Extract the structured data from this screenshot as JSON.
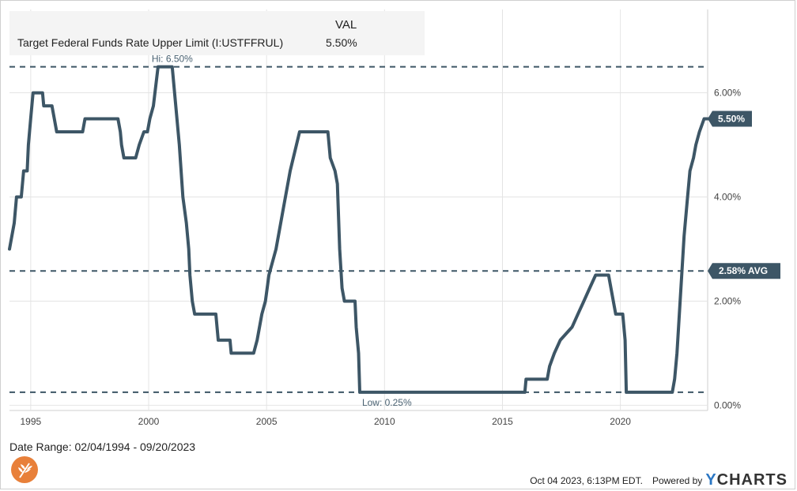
{
  "legend": {
    "header": "VAL",
    "series_name": "Target Federal Funds Rate Upper Limit (I:USTFFRUL)",
    "series_value": "5.50%"
  },
  "date_range": "Date Range: 02/04/1994 - 09/20/2023",
  "footer": {
    "timestamp": "Oct 04 2023, 6:13PM EDT.",
    "powered_by": "Powered by",
    "brand_y": "Y",
    "brand_rest": "CHARTS"
  },
  "colors": {
    "series": "#3d5666",
    "reference": "#3d5666",
    "grid": "#e4e4e4"
  },
  "chart_data": {
    "type": "line",
    "title": "",
    "xlabel": "",
    "ylabel": "",
    "x_range": [
      1994.1,
      2023.7
    ],
    "y_range": [
      -0.1,
      7.6
    ],
    "x_ticks": [
      {
        "value": 1995,
        "label": "1995"
      },
      {
        "value": 2000,
        "label": "2000"
      },
      {
        "value": 2005,
        "label": "2005"
      },
      {
        "value": 2010,
        "label": "2010"
      },
      {
        "value": 2015,
        "label": "2015"
      },
      {
        "value": 2020,
        "label": "2020"
      }
    ],
    "y_ticks": [
      {
        "value": 0,
        "label": "0.00%"
      },
      {
        "value": 2,
        "label": "2.00%"
      },
      {
        "value": 4,
        "label": "4.00%"
      },
      {
        "value": 6,
        "label": "6.00%"
      }
    ],
    "grid": true,
    "series": [
      {
        "name": "Target Federal Funds Rate Upper Limit (I:USTFFRUL)",
        "points": [
          [
            1994.1,
            3.0
          ],
          [
            1994.3,
            3.5
          ],
          [
            1994.4,
            4.0
          ],
          [
            1994.6,
            4.0
          ],
          [
            1994.7,
            4.5
          ],
          [
            1994.85,
            4.5
          ],
          [
            1994.9,
            5.0
          ],
          [
            1995.0,
            5.5
          ],
          [
            1995.1,
            6.0
          ],
          [
            1995.5,
            6.0
          ],
          [
            1995.55,
            5.75
          ],
          [
            1995.9,
            5.75
          ],
          [
            1996.0,
            5.5
          ],
          [
            1996.1,
            5.25
          ],
          [
            1997.2,
            5.25
          ],
          [
            1997.3,
            5.5
          ],
          [
            1998.7,
            5.5
          ],
          [
            1998.8,
            5.25
          ],
          [
            1998.85,
            5.0
          ],
          [
            1998.95,
            4.75
          ],
          [
            1999.45,
            4.75
          ],
          [
            1999.6,
            5.0
          ],
          [
            1999.8,
            5.25
          ],
          [
            1999.95,
            5.25
          ],
          [
            2000.05,
            5.5
          ],
          [
            2000.2,
            5.75
          ],
          [
            2000.4,
            6.5
          ],
          [
            2001.0,
            6.5
          ],
          [
            2001.1,
            6.0
          ],
          [
            2001.2,
            5.5
          ],
          [
            2001.3,
            5.0
          ],
          [
            2001.45,
            4.0
          ],
          [
            2001.6,
            3.5
          ],
          [
            2001.7,
            3.0
          ],
          [
            2001.75,
            2.5
          ],
          [
            2001.85,
            2.0
          ],
          [
            2001.95,
            1.75
          ],
          [
            2002.85,
            1.75
          ],
          [
            2002.95,
            1.25
          ],
          [
            2003.45,
            1.25
          ],
          [
            2003.5,
            1.0
          ],
          [
            2004.45,
            1.0
          ],
          [
            2004.6,
            1.25
          ],
          [
            2004.8,
            1.75
          ],
          [
            2004.95,
            2.0
          ],
          [
            2005.1,
            2.5
          ],
          [
            2005.4,
            3.0
          ],
          [
            2005.7,
            3.75
          ],
          [
            2006.0,
            4.5
          ],
          [
            2006.4,
            5.25
          ],
          [
            2007.6,
            5.25
          ],
          [
            2007.7,
            4.75
          ],
          [
            2007.9,
            4.5
          ],
          [
            2008.0,
            4.25
          ],
          [
            2008.1,
            3.0
          ],
          [
            2008.2,
            2.25
          ],
          [
            2008.3,
            2.0
          ],
          [
            2008.75,
            2.0
          ],
          [
            2008.8,
            1.5
          ],
          [
            2008.9,
            1.0
          ],
          [
            2008.95,
            0.25
          ],
          [
            2015.95,
            0.25
          ],
          [
            2016.0,
            0.5
          ],
          [
            2016.9,
            0.5
          ],
          [
            2017.0,
            0.75
          ],
          [
            2017.2,
            1.0
          ],
          [
            2017.45,
            1.25
          ],
          [
            2017.95,
            1.5
          ],
          [
            2018.2,
            1.75
          ],
          [
            2018.45,
            2.0
          ],
          [
            2018.7,
            2.25
          ],
          [
            2018.95,
            2.5
          ],
          [
            2019.5,
            2.5
          ],
          [
            2019.6,
            2.25
          ],
          [
            2019.7,
            2.0
          ],
          [
            2019.8,
            1.75
          ],
          [
            2020.1,
            1.75
          ],
          [
            2020.2,
            1.25
          ],
          [
            2020.25,
            0.25
          ],
          [
            2022.2,
            0.25
          ],
          [
            2022.3,
            0.5
          ],
          [
            2022.4,
            1.0
          ],
          [
            2022.5,
            1.75
          ],
          [
            2022.6,
            2.5
          ],
          [
            2022.7,
            3.25
          ],
          [
            2022.85,
            4.0
          ],
          [
            2022.95,
            4.5
          ],
          [
            2023.1,
            4.75
          ],
          [
            2023.2,
            5.0
          ],
          [
            2023.35,
            5.25
          ],
          [
            2023.55,
            5.5
          ],
          [
            2023.7,
            5.5
          ]
        ]
      }
    ],
    "reference_lines": [
      {
        "value": 6.5,
        "label": "Hi: 6.50%",
        "label_x": 2001.0
      },
      {
        "value": 2.58,
        "label": "2.58% AVG"
      },
      {
        "value": 0.25,
        "label": "Low: 0.25%",
        "label_x": 2010.1
      }
    ],
    "last_value_tag": {
      "value": 5.5,
      "label": "5.50%"
    }
  }
}
